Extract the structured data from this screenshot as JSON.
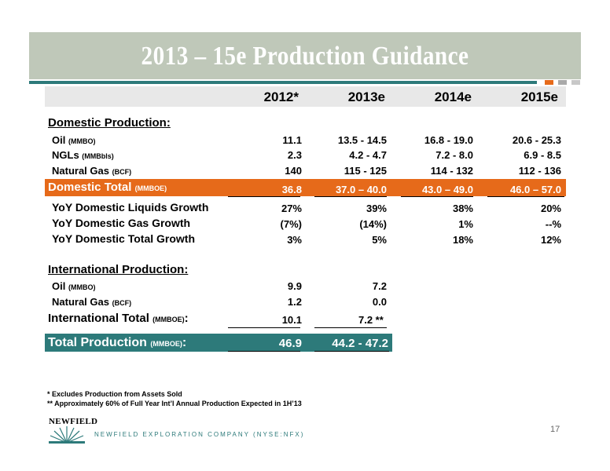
{
  "title": "2013 – 15e Production Guidance",
  "headers": [
    "2012*",
    "2013e",
    "2014e",
    "2015e"
  ],
  "domestic": {
    "heading": "Domestic Production:",
    "rows": [
      {
        "label": "Oil",
        "unit": "(MMBO)",
        "values": [
          "11.1",
          "13.5 - 14.5",
          "16.8 - 19.0",
          "20.6 - 25.3"
        ]
      },
      {
        "label": "NGLs",
        "unit": "(MMBbls)",
        "values": [
          "2.3",
          "4.2 - 4.7",
          "7.2 - 8.0",
          "6.9 - 8.5"
        ]
      },
      {
        "label": "Natural Gas",
        "unit": "(BCF)",
        "values": [
          "140",
          "115 - 125",
          "114 - 132",
          "112 - 136"
        ]
      }
    ],
    "total": {
      "label": "Domestic Total",
      "unit": "(MMBOE)",
      "values": [
        "36.8",
        "37.0 – 40.0",
        "43.0 – 49.0",
        "46.0 – 57.0"
      ]
    },
    "growth": [
      {
        "label": "YoY Domestic Liquids Growth",
        "values": [
          "27%",
          "39%",
          "38%",
          "20%"
        ]
      },
      {
        "label": "YoY Domestic Gas Growth",
        "values": [
          "(7%)",
          "(14%)",
          "1%",
          "--%"
        ]
      },
      {
        "label": "YoY Domestic Total Growth",
        "values": [
          "3%",
          "5%",
          "18%",
          "12%"
        ]
      }
    ]
  },
  "international": {
    "heading": "International Production:",
    "rows": [
      {
        "label": "Oil",
        "unit": "(MMBO)",
        "values": [
          "9.9",
          "7.2"
        ]
      },
      {
        "label": "Natural Gas",
        "unit": "(BCF)",
        "values": [
          "1.2",
          "0.0"
        ]
      }
    ],
    "total": {
      "label": "International Total",
      "unit": "(MMBOE)",
      "suffix": ":",
      "values": [
        "10.1",
        "7.2 **"
      ]
    }
  },
  "grand_total": {
    "label": "Total Production",
    "unit": "(MMBOE)",
    "suffix": ":",
    "values": [
      "46.9",
      "44.2 - 47.2"
    ]
  },
  "footnotes": [
    "* Excludes Production from Assets Sold",
    "** Approximately 60% of Full Year Int’l Annual Production Expected in 1H’13"
  ],
  "logo_text": "NEWFIELD",
  "company": "NEWFIELD EXPLORATION COMPANY (NYSE:NFX)",
  "page_number": "17",
  "colors": {
    "orange": "#e66a1a",
    "teal": "#2d7a7a",
    "title_bar": "#bfc8b9"
  }
}
